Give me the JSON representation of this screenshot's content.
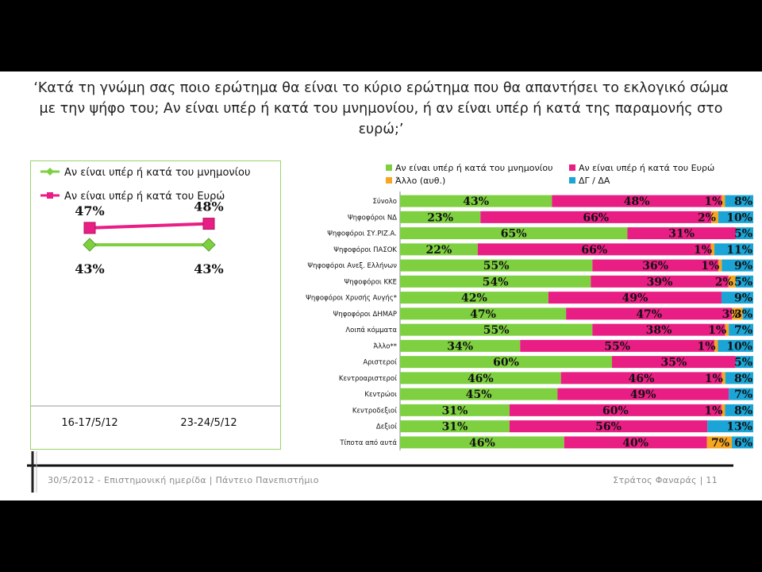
{
  "title": "‘Κατά τη γνώμη σας ποιο ερώτημα θα είναι το κύριο ερώτημα που θα απαντήσει το εκλογικό σώμα με την ψήφο του; Αν είναι υπέρ ή κατά του μνημονίου, ή αν είναι υπέρ ή κατά της παραμονής στο ευρώ;’",
  "footer": {
    "left": "30/5/2012 - Επιστημονική ημερίδα | Πάντειο Πανεπιστήμιο",
    "right": "Στράτος Φαναράς | 11"
  },
  "colors": {
    "green": "#7ed040",
    "pink": "#e91e84",
    "orange": "#f5a623",
    "blue": "#1ba5d6"
  },
  "chart_data": [
    {
      "type": "line",
      "categories": [
        "16-17/5/12",
        "23-24/5/12"
      ],
      "series": [
        {
          "name": "Αν είναι υπέρ ή κατά του μνημονίου",
          "values": [
            43,
            43
          ],
          "labels": [
            "43%",
            "43%"
          ]
        },
        {
          "name": "Αν είναι υπέρ ή κατά του Ευρώ",
          "values": [
            47,
            48
          ],
          "labels": [
            "47%",
            "48%"
          ]
        }
      ],
      "legend": "top",
      "grid": false
    },
    {
      "type": "bar",
      "stacked": true,
      "orientation": "horizontal",
      "legend": "top",
      "categories": [
        "Σύνολο",
        "Ψηφοφόροι ΝΔ",
        "Ψηφοφόροι ΣΥ.ΡΙΖ.Α.",
        "Ψηφοφόροι ΠΑΣΟΚ",
        "Ψηφοφόροι Ανεξ. Ελλήνων",
        "Ψηφοφόροι ΚΚΕ",
        "Ψηφοφόροι Χρυσής Αυγής*",
        "Ψηφοφόροι ΔΗΜΑΡ",
        "Λοιπά κόμματα",
        "Άλλο**",
        "Αριστεροί",
        "Κεντροαριστεροί",
        "Κεντρώοι",
        "Κεντροδεξιοί",
        "Δεξιοί",
        "Τίποτα από αυτά"
      ],
      "series": [
        {
          "name": "Αν είναι υπέρ ή κατά του μνημονίου",
          "values": [
            43,
            23,
            65,
            22,
            55,
            54,
            42,
            47,
            55,
            34,
            60,
            46,
            45,
            31,
            31,
            46
          ],
          "labels": [
            "43%",
            "23%",
            "65%",
            "22%",
            "55%",
            "54%",
            "42%",
            "47%",
            "55%",
            "34%",
            "60%",
            "46%",
            "45%",
            "31%",
            "31%",
            "46%"
          ]
        },
        {
          "name": "Αν είναι υπέρ ή κατά του Ευρώ",
          "values": [
            48,
            66,
            31,
            66,
            36,
            39,
            49,
            47,
            38,
            55,
            35,
            46,
            49,
            60,
            56,
            40
          ],
          "labels": [
            "48%",
            "66%",
            "31%",
            "66%",
            "36%",
            "39%",
            "49%",
            "47%",
            "38%",
            "55%",
            "35%",
            "46%",
            "49%",
            "60%",
            "56%",
            "40%"
          ]
        },
        {
          "name": "Άλλο (αυθ.)",
          "values": [
            1,
            2,
            0,
            1,
            1,
            2,
            0,
            3,
            1,
            1,
            0,
            1,
            0,
            1,
            0,
            7
          ],
          "labels": [
            "1%",
            "2%",
            "",
            "1%",
            "1%",
            "2%",
            "",
            "3%",
            "1%",
            "1%",
            "",
            "1%",
            "",
            "1%",
            "",
            "7%"
          ]
        },
        {
          "name": "ΔΓ / ΔΑ",
          "values": [
            8,
            10,
            5,
            11,
            9,
            5,
            9,
            3,
            7,
            10,
            5,
            8,
            7,
            8,
            13,
            6
          ],
          "labels": [
            "8%",
            "10%",
            "5%",
            "11%",
            "9%",
            "5%",
            "9%",
            "3%",
            "7%",
            "10%",
            "5%",
            "8%",
            "7%",
            "8%",
            "13%",
            "6%"
          ]
        }
      ]
    }
  ]
}
